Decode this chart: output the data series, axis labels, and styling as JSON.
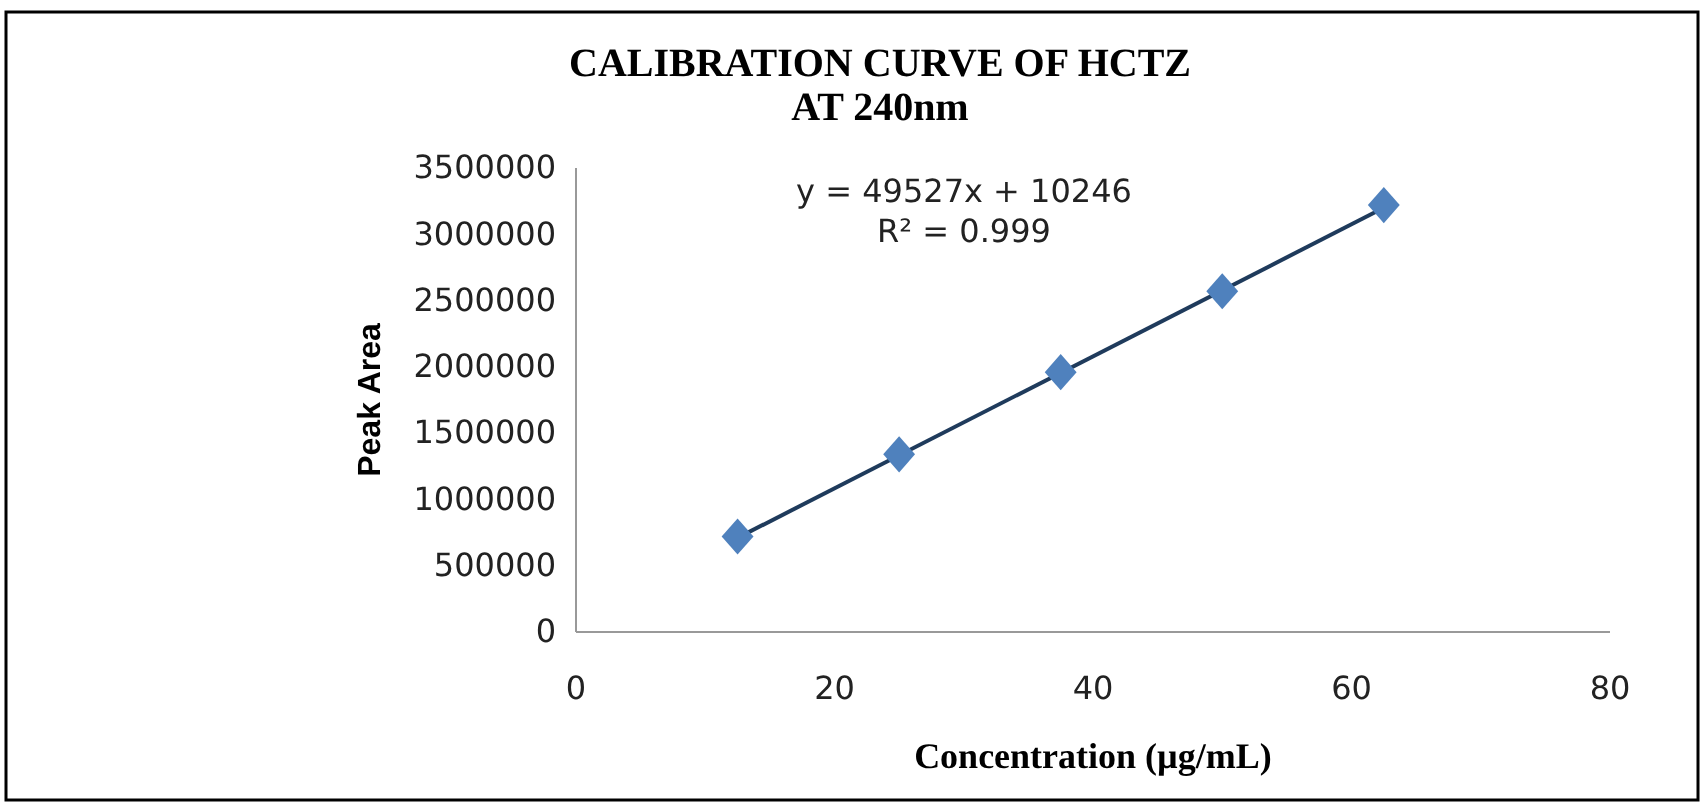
{
  "chart_data": {
    "type": "scatter",
    "title": "CALIBRATION CURVE OF HCTZ\nAT 240nm",
    "xlabel": "Concentration (µg/mL)",
    "ylabel": "Peak Area",
    "x": [
      12.5,
      25,
      37.5,
      50,
      62.5
    ],
    "series": [
      {
        "color": "#4f81bd",
        "values": [
          720000,
          1340000,
          1960000,
          2570000,
          3220000
        ],
        "marker": "diamond"
      },
      {
        "type": "line",
        "color": "#1f3b5c",
        "x": [
          12.5,
          62.5
        ],
        "values": [
          710000,
          3200000
        ],
        "marker": "none"
      }
    ],
    "annotations": [
      "y = 49527x + 10246",
      "R² = 0.999"
    ],
    "xlim": [
      0,
      80
    ],
    "xticks": [
      0,
      20,
      40,
      60,
      80
    ],
    "ylim": [
      0,
      3500000
    ],
    "yticks": [
      0,
      500000,
      1000000,
      1500000,
      2000000,
      2500000,
      3000000,
      3500000
    ],
    "grid": false
  }
}
